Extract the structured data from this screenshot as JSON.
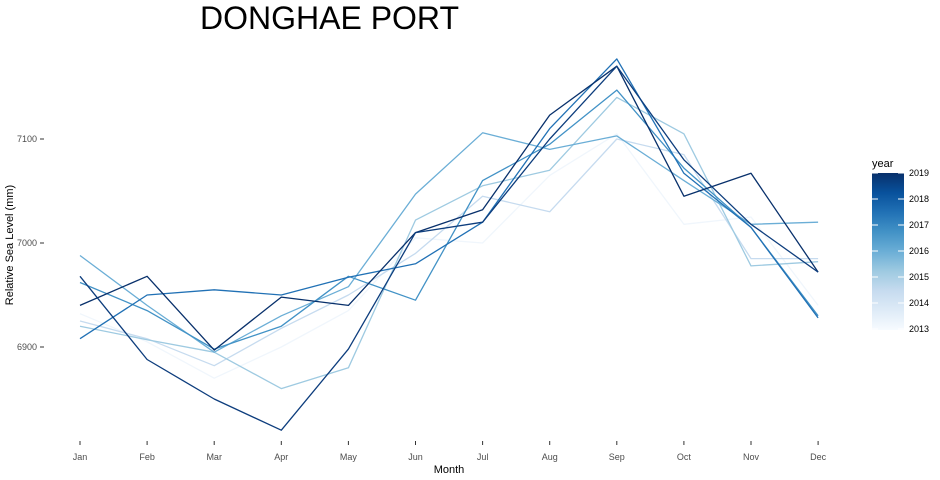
{
  "chart_data": {
    "type": "line",
    "title": "DONGHAE PORT",
    "xlabel": "Month",
    "ylabel": "Relative Sea Level (mm)",
    "categories": [
      "Jan",
      "Feb",
      "Mar",
      "Apr",
      "May",
      "Jun",
      "Jul",
      "Aug",
      "Sep",
      "Oct",
      "Nov",
      "Dec"
    ],
    "yticks": [
      6900,
      7000,
      7100
    ],
    "ylim": [
      6800,
      7180
    ],
    "grid": false,
    "legend": {
      "title": "year",
      "placement": "right",
      "type": "colorbar",
      "labels": [
        "2019",
        "2018",
        "2017",
        "2016",
        "2015",
        "2014",
        "2013"
      ],
      "colors": [
        "#08306b",
        "#08519c",
        "#2171b5",
        "#4292c6",
        "#6baed6",
        "#9ecae1",
        "#c6dbef",
        "#deebf7",
        "#f7fbff"
      ]
    },
    "series": [
      {
        "year": 2013,
        "color": "#f0f6fc",
        "values": [
          6932,
          6905,
          6870,
          6900,
          6935,
          7005,
          7000,
          7065,
          7105,
          7018,
          7025,
          6940
        ]
      },
      {
        "year": 2014,
        "color": "#c6dbef",
        "values": [
          6925,
          6908,
          6882,
          6918,
          6950,
          6990,
          7045,
          7030,
          7100,
          7085,
          6985,
          6985
        ]
      },
      {
        "year": 2015,
        "color": "#9ecae1",
        "values": [
          6920,
          6907,
          6895,
          6860,
          6880,
          7022,
          7055,
          7070,
          7140,
          7105,
          6978,
          6982
        ]
      },
      {
        "year": 2016,
        "color": "#6baed6",
        "values": [
          6988,
          6940,
          6895,
          6930,
          6958,
          7047,
          7106,
          7090,
          7103,
          7060,
          7018,
          7020
        ]
      },
      {
        "year": 2017,
        "color": "#4292c6",
        "values": [
          6962,
          6935,
          6898,
          6920,
          6968,
          6945,
          7060,
          7095,
          7147,
          7072,
          7015,
          6930
        ]
      },
      {
        "year": 2018,
        "color": "#2171b5",
        "values": [
          6908,
          6950,
          6955,
          6950,
          6967,
          6980,
          7020,
          7110,
          7177,
          7067,
          7015,
          6928
        ]
      },
      {
        "year": 2019,
        "color": "#08306b",
        "values": [
          6940,
          6968,
          6897,
          6948,
          6940,
          7010,
          7032,
          7123,
          7170,
          7045,
          7067,
          6972
        ]
      },
      {
        "year": 2019,
        "color": "#0d3d7d",
        "values": [
          6968,
          6888,
          6850,
          6820,
          6898,
          7010,
          7020,
          7100,
          7170,
          7080,
          7018,
          6972
        ]
      }
    ]
  }
}
